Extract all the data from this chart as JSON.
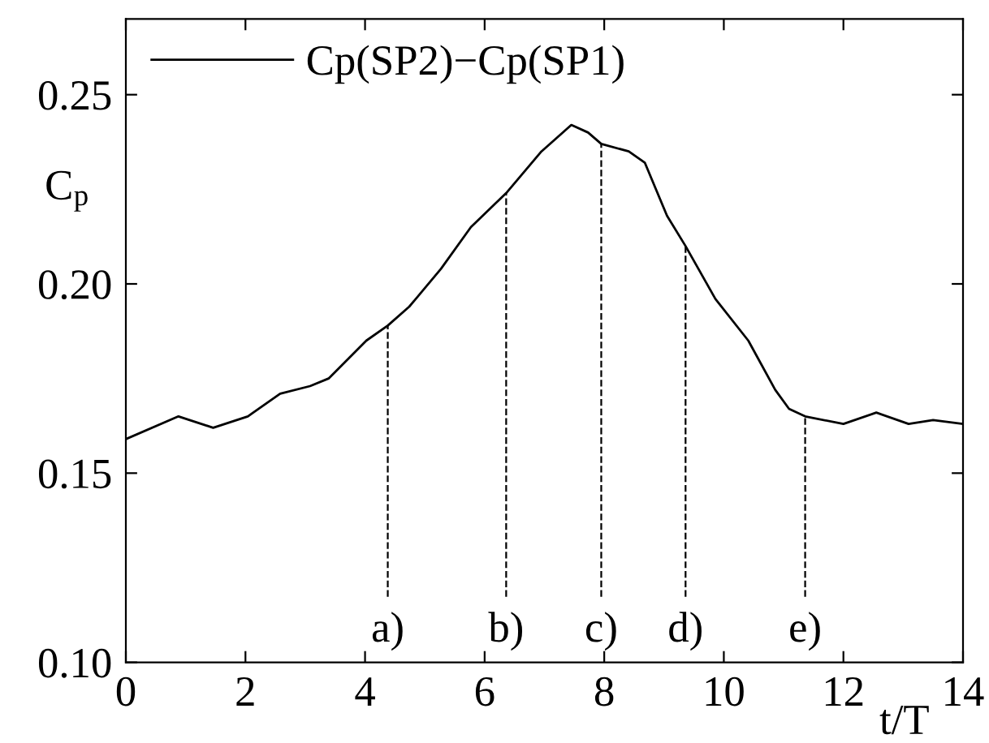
{
  "chart_data": {
    "type": "line",
    "xlabel": "t/T",
    "ylabel": "C$_{p}$",
    "xlim": [
      0,
      14
    ],
    "ylim": [
      0.1,
      0.27
    ],
    "xticks": [
      0,
      2,
      4,
      6,
      8,
      10,
      12,
      14
    ],
    "yticks": [
      {
        "value": 0.1,
        "label": "0.10"
      },
      {
        "value": 0.15,
        "label": "0.15"
      },
      {
        "value": 0.2,
        "label": "0.20"
      },
      {
        "value": 0.25,
        "label": "0.25"
      }
    ],
    "grid": false,
    "legend": "top left",
    "line_style": "solid",
    "marker": "none",
    "series": [
      {
        "name": "Cp(SP2)−Cp(SP1)",
        "color": "#000000",
        "x": [
          0,
          0.88,
          1.46,
          2.04,
          2.58,
          3.08,
          3.39,
          4.02,
          4.38,
          4.74,
          5.27,
          5.77,
          6.36,
          6.95,
          7.45,
          7.73,
          7.95,
          8.41,
          8.68,
          9.05,
          9.36,
          9.86,
          10.41,
          10.86,
          11.09,
          11.36,
          12.0,
          12.55,
          13.09,
          13.5,
          14.0
        ],
        "values": [
          0.159,
          0.165,
          0.162,
          0.165,
          0.171,
          0.173,
          0.175,
          0.185,
          0.189,
          0.194,
          0.204,
          0.215,
          0.224,
          0.235,
          0.242,
          0.24,
          0.237,
          0.235,
          0.232,
          0.218,
          0.21,
          0.196,
          0.185,
          0.172,
          0.167,
          0.165,
          0.163,
          0.166,
          0.163,
          0.164,
          0.163
        ]
      }
    ],
    "ref_lines": [
      {
        "axis": "x",
        "value": 4.38,
        "label": "a)",
        "line_style": "dashed"
      },
      {
        "axis": "x",
        "value": 6.36,
        "label": "b)",
        "line_style": "dashed"
      },
      {
        "axis": "x",
        "value": 7.95,
        "label": "c)",
        "line_style": "dashed"
      },
      {
        "axis": "x",
        "value": 9.36,
        "label": "d)",
        "line_style": "dashed"
      },
      {
        "axis": "x",
        "value": 11.36,
        "label": "e)",
        "line_style": "dashed"
      }
    ]
  }
}
